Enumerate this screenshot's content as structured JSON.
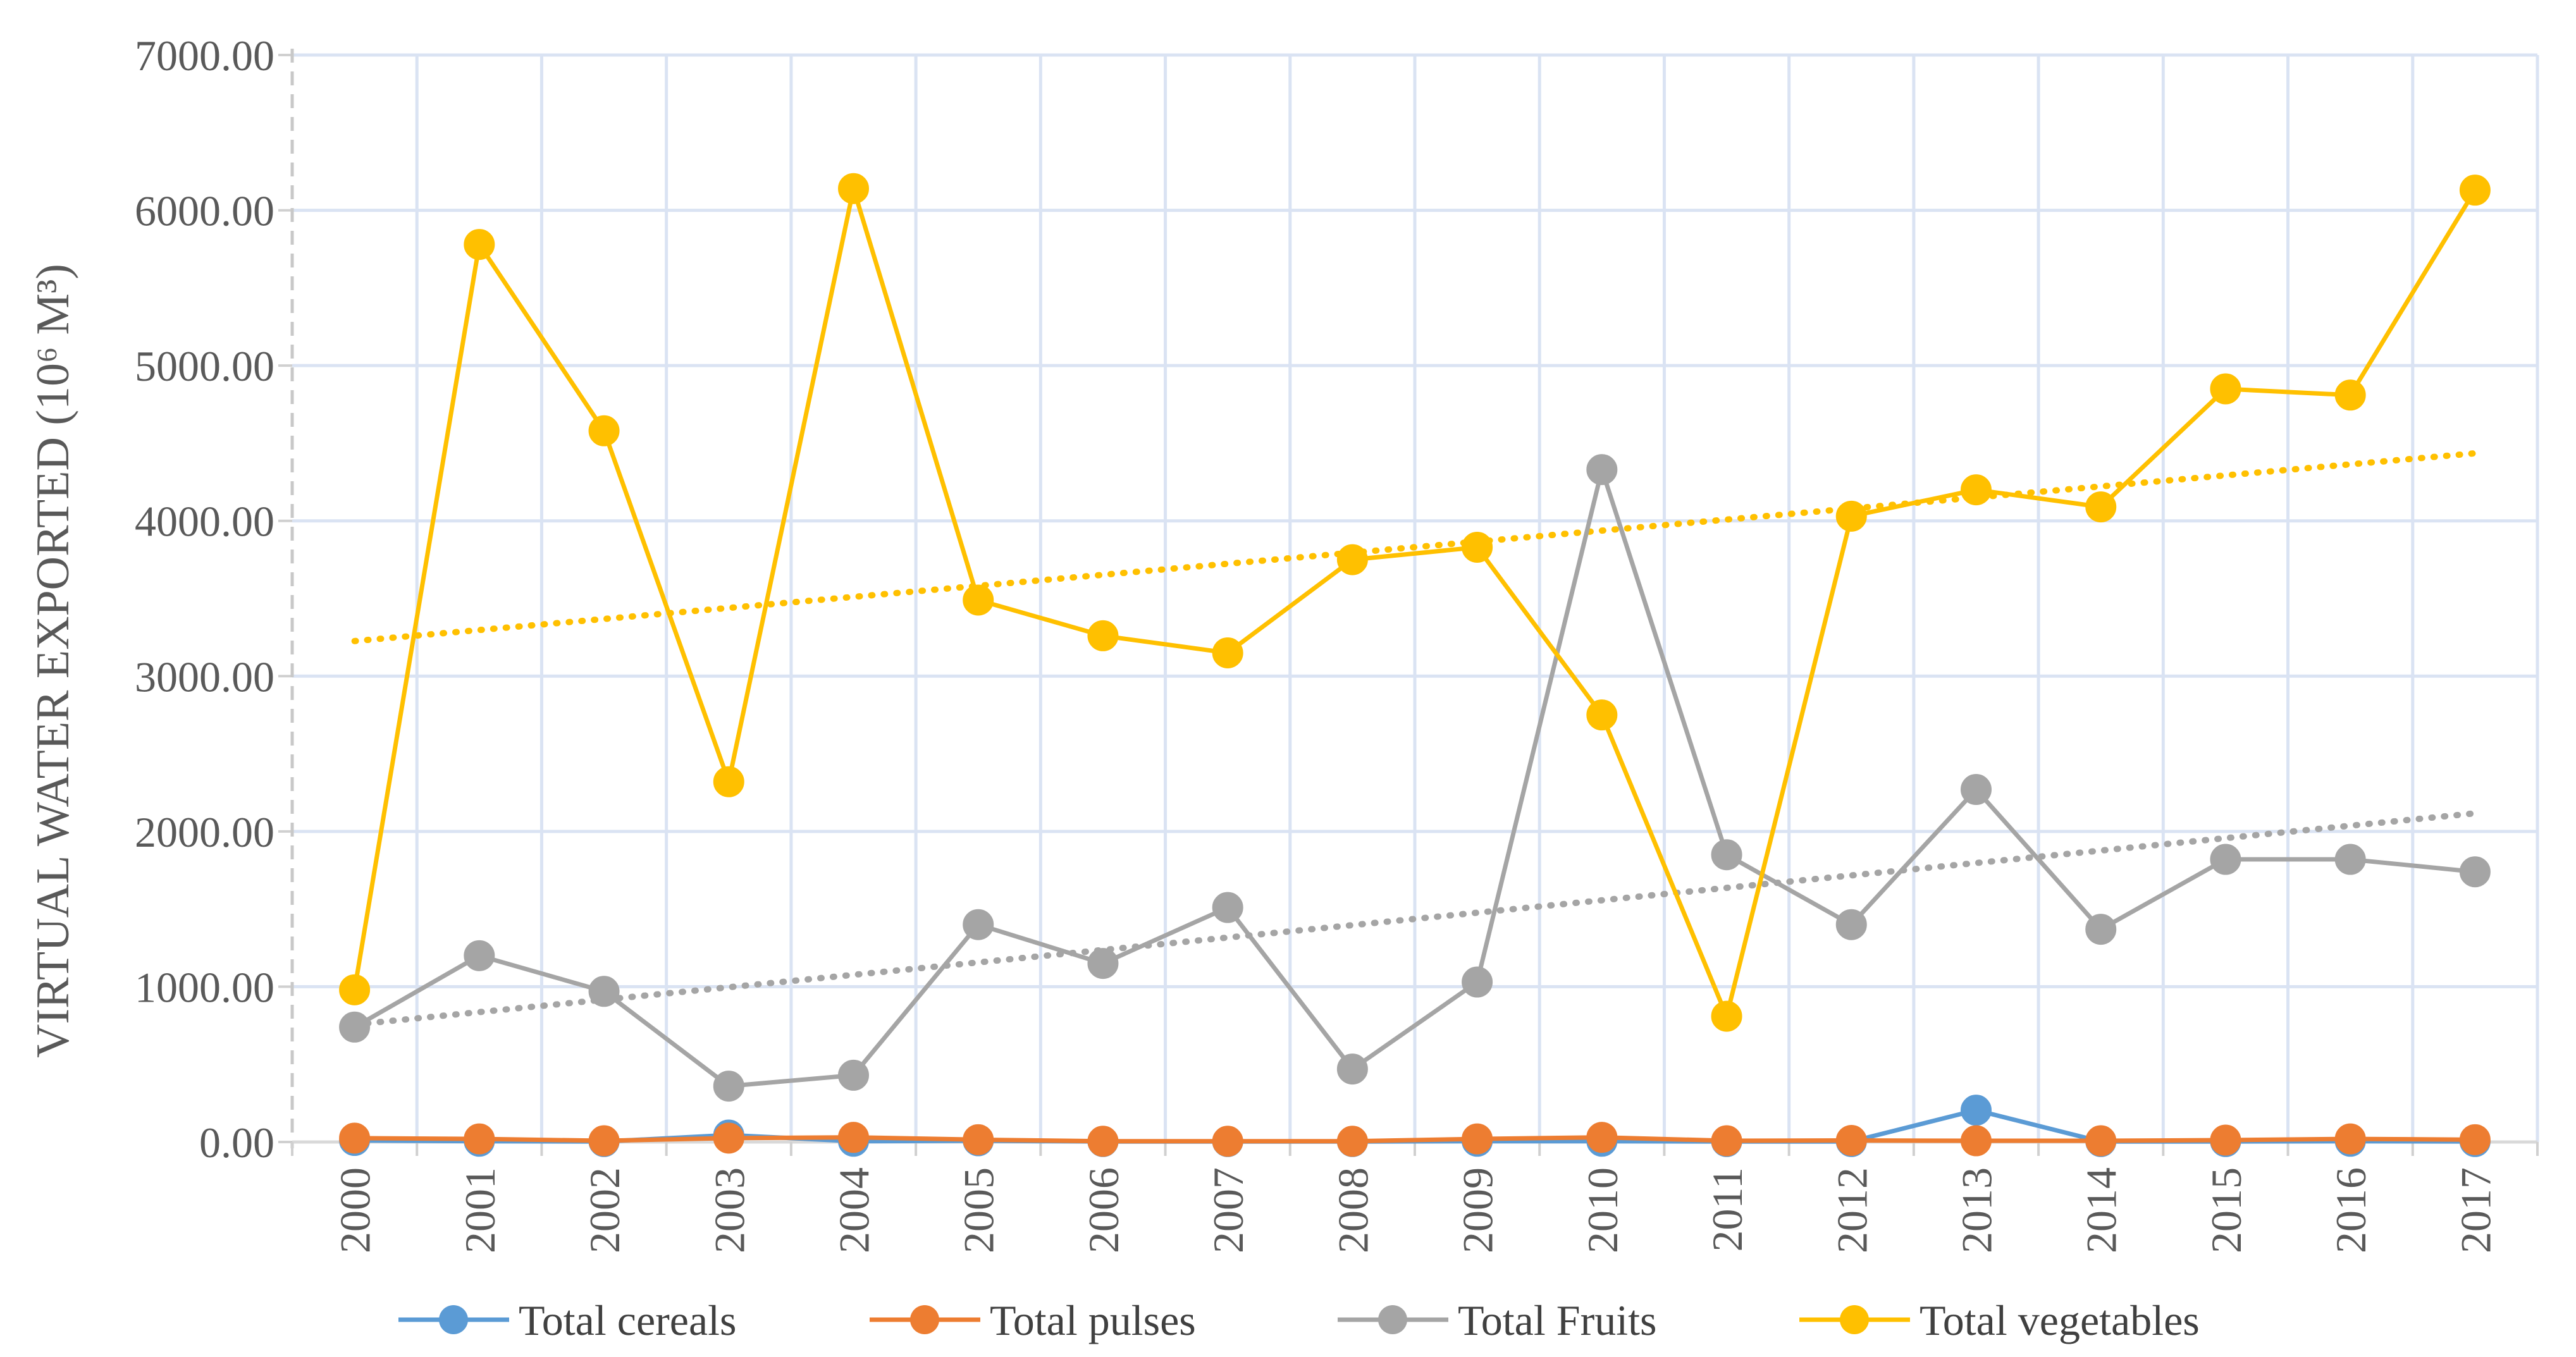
{
  "chart_data": {
    "type": "line",
    "title": "",
    "xlabel": "",
    "ylabel": "VIRTUAL WATER EXPORTED (10⁶ M³)",
    "ylim": [
      0,
      7000
    ],
    "ytick_step": 1000,
    "ytick_labels": [
      "0.00",
      "1000.00",
      "2000.00",
      "3000.00",
      "4000.00",
      "5000.00",
      "6000.00",
      "7000.00"
    ],
    "categories": [
      "2000",
      "2001",
      "2002",
      "2003",
      "2004",
      "2005",
      "2006",
      "2007",
      "2008",
      "2009",
      "2010",
      "2011",
      "2012",
      "2013",
      "2014",
      "2015",
      "2016",
      "2017"
    ],
    "legend_position": "bottom",
    "grid": true,
    "series": [
      {
        "name": "Total cereals",
        "color": "#5B9BD5",
        "values": [
          10,
          5,
          3,
          45,
          5,
          8,
          3,
          3,
          3,
          5,
          5,
          3,
          3,
          205,
          3,
          3,
          5,
          3
        ],
        "trendline": false
      },
      {
        "name": "Total pulses",
        "color": "#ED7D31",
        "values": [
          25,
          20,
          8,
          25,
          30,
          15,
          5,
          5,
          5,
          20,
          30,
          8,
          10,
          8,
          8,
          12,
          20,
          15
        ],
        "trendline": false
      },
      {
        "name": "Total Fruits",
        "color": "#A5A5A5",
        "values": [
          740,
          1200,
          970,
          360,
          430,
          1400,
          1150,
          1510,
          470,
          1030,
          4330,
          1850,
          1400,
          2270,
          1370,
          1820,
          1820,
          1740
        ],
        "trendline": true,
        "trend_color": "#A5A5A5"
      },
      {
        "name": "Total vegetables",
        "color": "#FFC000",
        "values": [
          980,
          5780,
          4580,
          2320,
          6140,
          3490,
          3260,
          3150,
          3750,
          3830,
          2750,
          810,
          4030,
          4200,
          4090,
          4850,
          4810,
          6130
        ],
        "trendline": true,
        "trend_color": "#FFC000"
      }
    ]
  }
}
